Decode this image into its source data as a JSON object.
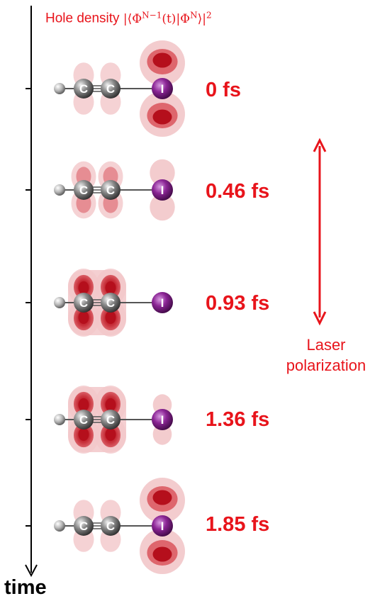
{
  "title": {
    "prefix": "Hole density ",
    "formula": "|⟨Φ",
    "sup1": "N−1",
    "mid": "(t)|Φ",
    "sup2": "N",
    "suffix": "⟩|",
    "sup3": "2"
  },
  "axis": {
    "label": "time"
  },
  "atoms": {
    "carbon": "C",
    "iodine": "I"
  },
  "frames": [
    {
      "time": "0 fs",
      "carbon_hole": 0.15,
      "iodine_hole": 1.0
    },
    {
      "time": "0.46 fs",
      "carbon_hole": 0.45,
      "iodine_hole": 0.35
    },
    {
      "time": "0.93 fs",
      "carbon_hole": 1.0,
      "iodine_hole": 0.0
    },
    {
      "time": "1.36 fs",
      "carbon_hole": 0.8,
      "iodine_hole": 0.15
    },
    {
      "time": "1.85 fs",
      "carbon_hole": 0.15,
      "iodine_hole": 1.0
    }
  ],
  "laser": {
    "line1": "Laser",
    "line2": "polarization"
  },
  "colors": {
    "accent": "#e8141b",
    "iodine": "#7a1a82",
    "carbon": "#6e6e6e",
    "hydrogen": "#c4c4c4",
    "density_light": "#f2c7c9",
    "density_mid": "#d9545c",
    "density_dark": "#b50f1c"
  }
}
